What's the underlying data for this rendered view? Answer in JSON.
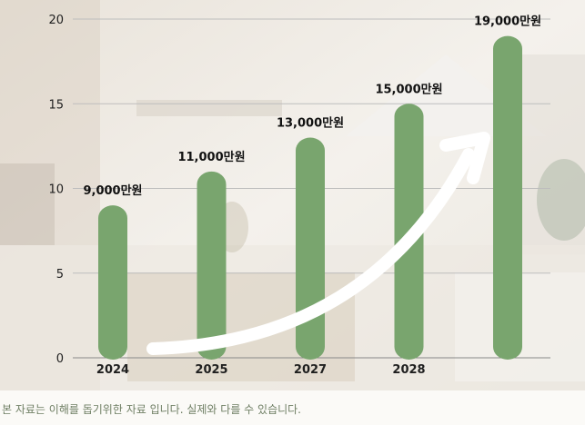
{
  "chart_data": {
    "type": "bar",
    "categories": [
      "2024",
      "2025",
      "2027",
      "2028",
      ""
    ],
    "values": [
      9000,
      11000,
      13000,
      15000,
      19000
    ],
    "data_labels": [
      "9,000만원",
      "11,000만원",
      "13,000만원",
      "15,000만원",
      "19,000만원"
    ],
    "ylim": [
      0,
      20
    ],
    "y_scale_divisor": 1000,
    "y_ticks": [
      "0",
      "5",
      "10",
      "15",
      "20"
    ],
    "grid": true,
    "bar_color": "#79a56e",
    "trend_arrow_color": "#ffffff"
  },
  "footer": {
    "disclaimer": "본 자료는 이해를 돕기위한 자료 입니다. 실제와 다를 수 있습니다."
  },
  "colors": {
    "text": "#1f1f1f",
    "footer_text": "#6f7f64"
  }
}
